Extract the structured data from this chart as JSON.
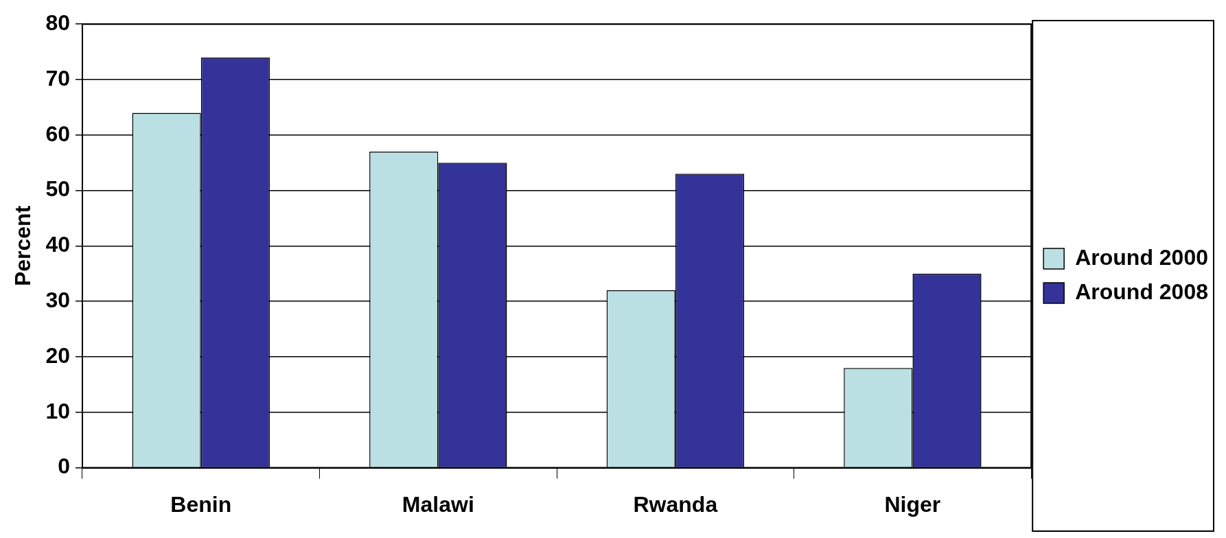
{
  "chart_data": {
    "type": "bar",
    "ylabel": "Percent",
    "categories": [
      "Benin",
      "Malawi",
      "Rwanda",
      "Niger"
    ],
    "series": [
      {
        "name": "Around 2000",
        "color": "#bbe0e3",
        "values": [
          64,
          57,
          32,
          18
        ]
      },
      {
        "name": "Around 2008",
        "color": "#333399",
        "values": [
          74,
          55,
          53,
          35
        ]
      }
    ],
    "ylim": [
      0,
      80
    ],
    "yticks": [
      0,
      10,
      20,
      30,
      40,
      50,
      60,
      70,
      80
    ],
    "grid": "y",
    "legend": "right"
  }
}
